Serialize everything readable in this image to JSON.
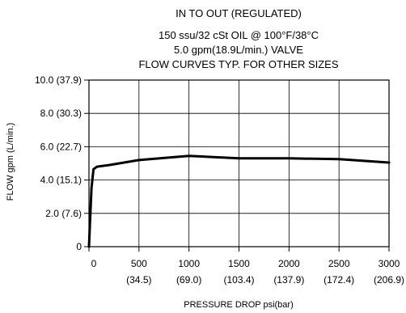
{
  "chart_data": {
    "type": "line",
    "title_lines": [
      "IN TO OUT (REGULATED)",
      "150 ssu/32 cSt OIL @ 100°F/38°C",
      "5.0 gpm(18.9L/min.) VALVE",
      "FLOW CURVES TYP. FOR OTHER SIZES"
    ],
    "xlabel": "PRESSURE DROP psi(bar)",
    "ylabel": "FLOW gpm (L/min.)",
    "xlim": [
      0,
      3000
    ],
    "ylim": [
      0,
      10
    ],
    "x_ticks": [
      {
        "value": 0,
        "label": "0",
        "sublabel": ""
      },
      {
        "value": 500,
        "label": "500",
        "sublabel": "(34.5)"
      },
      {
        "value": 1000,
        "label": "1000",
        "sublabel": "(69.0)"
      },
      {
        "value": 1500,
        "label": "1500",
        "sublabel": "(103.4)"
      },
      {
        "value": 2000,
        "label": "2000",
        "sublabel": "(137.9)"
      },
      {
        "value": 2500,
        "label": "2500",
        "sublabel": "(172.4)"
      },
      {
        "value": 3000,
        "label": "3000",
        "sublabel": "(206.9)"
      }
    ],
    "y_ticks": [
      {
        "value": 0,
        "label": "0"
      },
      {
        "value": 2,
        "label": "2.0 (7.6)"
      },
      {
        "value": 4,
        "label": "4.0 (15.1)"
      },
      {
        "value": 6,
        "label": "6.0 (22.7)"
      },
      {
        "value": 8,
        "label": "8.0 (30.3)"
      },
      {
        "value": 10,
        "label": "10.0 (37.9)"
      }
    ],
    "grid": true,
    "series": [
      {
        "color": "#000000",
        "x": [
          0,
          25,
          45,
          80,
          200,
          500,
          1000,
          1500,
          2000,
          2500,
          3000
        ],
        "y": [
          0,
          3.5,
          4.65,
          4.8,
          4.9,
          5.2,
          5.45,
          5.3,
          5.3,
          5.25,
          5.05
        ]
      }
    ]
  }
}
